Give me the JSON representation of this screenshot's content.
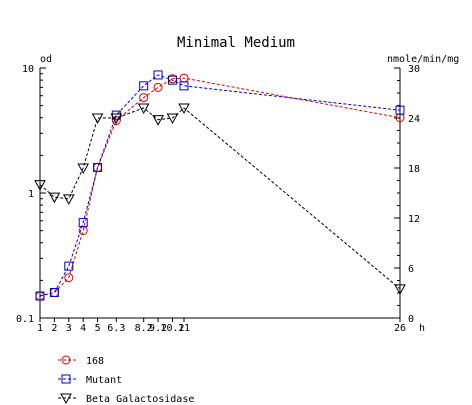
{
  "chart_data": {
    "type": "line",
    "title": "Minimal Medium",
    "ylabel_left": "od",
    "ylabel_right": "nmole/min/mg",
    "xlabel": "h",
    "x_ticks": [
      "1",
      "2",
      "3",
      "4",
      "5",
      "6.3",
      "8.2",
      "9.2",
      "10.2",
      "11",
      "26"
    ],
    "x_tick_values": [
      1,
      2,
      3,
      4,
      5,
      6.3,
      8.2,
      9.2,
      10.2,
      11,
      26
    ],
    "xlim": [
      1,
      26
    ],
    "left_axis": {
      "scale": "log",
      "ylim": [
        0.1,
        10
      ],
      "ticks": [
        "0.1",
        "1",
        "10"
      ]
    },
    "right_axis": {
      "scale": "linear",
      "ylim": [
        0,
        30
      ],
      "ticks": [
        "0",
        "6",
        "12",
        "18",
        "24",
        "30"
      ]
    },
    "series": [
      {
        "name": "168",
        "axis": "left",
        "color": "#dd0000",
        "marker": "circle",
        "x": [
          1,
          2,
          3,
          4,
          5,
          6.3,
          8.2,
          9.2,
          10.2,
          11,
          26
        ],
        "y": [
          0.15,
          0.16,
          0.21,
          0.5,
          1.6,
          3.8,
          5.8,
          7.0,
          8.2,
          8.3,
          4.0
        ]
      },
      {
        "name": "Mutant",
        "axis": "left",
        "color": "#0000cc",
        "marker": "square",
        "x": [
          1,
          2,
          3,
          4,
          5,
          6.3,
          8.2,
          9.2,
          10.2,
          11,
          26
        ],
        "y": [
          0.15,
          0.16,
          0.26,
          0.58,
          1.6,
          4.2,
          7.2,
          8.8,
          8.0,
          7.2,
          4.6
        ]
      },
      {
        "name": "Beta Galactosidase",
        "axis": "right",
        "color": "#000000",
        "marker": "triangle-down",
        "x": [
          1,
          2,
          3,
          4,
          5,
          6.3,
          8.2,
          9.2,
          10.2,
          11,
          26
        ],
        "y": [
          16,
          14.5,
          14.3,
          18,
          24,
          24,
          25.2,
          23.8,
          24,
          25.2,
          3.5
        ]
      }
    ],
    "grid": false,
    "legend_position": "bottom-left"
  }
}
